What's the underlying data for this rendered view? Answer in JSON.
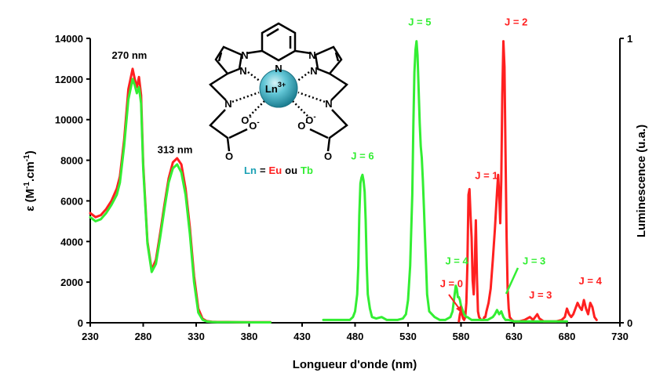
{
  "chart_data": {
    "type": "line",
    "xlabel": "Longueur d'onde (nm)",
    "ylabel_left": {
      "base": "ε (M",
      "sup1": "-1",
      "mid": ".cm",
      "sup2": "-1",
      "end": ")"
    },
    "ylabel_right": "Luminescence (u.a.)",
    "xlim": [
      230,
      730
    ],
    "ylim_left": [
      0,
      14000
    ],
    "ylim_right": [
      0,
      1
    ],
    "x_ticks": [
      "230",
      "280",
      "330",
      "380",
      "430",
      "480",
      "530",
      "580",
      "630",
      "680",
      "730"
    ],
    "y_left_ticks": [
      "0",
      "2000",
      "4000",
      "6000",
      "8000",
      "10000",
      "12000",
      "14000"
    ],
    "y_right_ticks": [
      "0",
      "1"
    ],
    "colors": {
      "eu": "#ff2020",
      "tb": "#33ee33",
      "ln": "#1aa0b4",
      "axis": "#000000"
    },
    "series": [
      {
        "name": "Eu",
        "axis": "left",
        "x": [
          230,
          235,
          240,
          245,
          250,
          255,
          258,
          262,
          266,
          270,
          272,
          274,
          276,
          278,
          280,
          284,
          288,
          292,
          296,
          300,
          304,
          308,
          312,
          316,
          320,
          324,
          328,
          332,
          336,
          340,
          345,
          350,
          360,
          370,
          380,
          390,
          400
        ],
        "y": [
          5400,
          5200,
          5300,
          5600,
          6000,
          6600,
          7200,
          9000,
          11500,
          12500,
          12000,
          11600,
          12100,
          11200,
          7800,
          4000,
          2600,
          3100,
          4400,
          5800,
          7100,
          7900,
          8100,
          7800,
          6600,
          4700,
          2300,
          700,
          200,
          80,
          50,
          40,
          40,
          30,
          30,
          30,
          30
        ]
      },
      {
        "name": "Tb",
        "axis": "left",
        "x": [
          230,
          235,
          240,
          245,
          250,
          255,
          258,
          262,
          266,
          270,
          272,
          274,
          276,
          278,
          280,
          284,
          288,
          292,
          296,
          300,
          304,
          308,
          312,
          316,
          320,
          324,
          328,
          332,
          336,
          340,
          345,
          350,
          360,
          370,
          380,
          390,
          400
        ],
        "y": [
          5200,
          5000,
          5100,
          5400,
          5800,
          6300,
          6900,
          8700,
          11000,
          12000,
          11700,
          11300,
          11600,
          10800,
          7600,
          3900,
          2500,
          2900,
          4200,
          5600,
          6900,
          7600,
          7800,
          7400,
          6300,
          4400,
          2000,
          500,
          150,
          60,
          40,
          30,
          30,
          30,
          20,
          20,
          20
        ]
      },
      {
        "name": "Eu",
        "axis": "right",
        "x": [
          578,
          579,
          580,
          581,
          582,
          583,
          584,
          585,
          586,
          587,
          588,
          589,
          590,
          591,
          592,
          593,
          594,
          595,
          596,
          597,
          598,
          599,
          600,
          601,
          602,
          603,
          604,
          606,
          608,
          610,
          612,
          614,
          615,
          616,
          617,
          618,
          619,
          620,
          621,
          622,
          623,
          624,
          625,
          626,
          628,
          630,
          635,
          640,
          645,
          648,
          650,
          652,
          654,
          656,
          658,
          660,
          665,
          670,
          675,
          678,
          680,
          682,
          684,
          686,
          688,
          690,
          692,
          694,
          696,
          698,
          700,
          702,
          704,
          706,
          708
        ],
        "y": [
          0.005,
          0.03,
          0.045,
          0.03,
          0.015,
          0.01,
          0.02,
          0.07,
          0.2,
          0.45,
          0.47,
          0.38,
          0.3,
          0.15,
          0.1,
          0.2,
          0.36,
          0.16,
          0.04,
          0.02,
          0.015,
          0.01,
          0.01,
          0.01,
          0.02,
          0.02,
          0.04,
          0.07,
          0.12,
          0.22,
          0.33,
          0.46,
          0.52,
          0.45,
          0.35,
          0.5,
          0.8,
          0.99,
          0.9,
          0.6,
          0.3,
          0.12,
          0.05,
          0.02,
          0.01,
          0.005,
          0.005,
          0.01,
          0.02,
          0.01,
          0.02,
          0.03,
          0.015,
          0.01,
          0.005,
          0.005,
          0.005,
          0.005,
          0.01,
          0.02,
          0.05,
          0.03,
          0.02,
          0.03,
          0.05,
          0.07,
          0.055,
          0.045,
          0.08,
          0.05,
          0.03,
          0.07,
          0.055,
          0.02,
          0.01
        ]
      },
      {
        "name": "Tb",
        "axis": "right",
        "x": [
          450,
          460,
          470,
          475,
          478,
          480,
          482,
          483,
          484,
          485,
          486,
          487,
          488,
          489,
          490,
          491,
          492,
          494,
          496,
          500,
          505,
          510,
          515,
          520,
          525,
          528,
          530,
          532,
          534,
          535,
          536,
          537,
          538,
          539,
          540,
          541,
          542,
          543,
          544,
          545,
          546,
          547,
          548,
          550,
          555,
          560,
          565,
          570,
          572,
          574,
          575,
          576,
          577,
          578,
          579,
          580,
          581,
          582,
          583,
          584,
          585,
          586,
          588,
          590,
          595,
          600,
          605,
          610,
          612,
          614,
          616,
          618,
          620,
          622,
          625,
          630,
          640,
          650,
          660,
          670,
          680
        ],
        "y": [
          0.01,
          0.01,
          0.01,
          0.01,
          0.02,
          0.04,
          0.1,
          0.2,
          0.38,
          0.49,
          0.51,
          0.52,
          0.5,
          0.46,
          0.36,
          0.2,
          0.1,
          0.05,
          0.02,
          0.015,
          0.02,
          0.01,
          0.01,
          0.01,
          0.015,
          0.03,
          0.08,
          0.2,
          0.45,
          0.7,
          0.88,
          0.96,
          0.99,
          0.94,
          0.82,
          0.7,
          0.62,
          0.58,
          0.5,
          0.4,
          0.3,
          0.2,
          0.1,
          0.04,
          0.02,
          0.01,
          0.01,
          0.02,
          0.04,
          0.1,
          0.13,
          0.12,
          0.09,
          0.09,
          0.08,
          0.06,
          0.05,
          0.04,
          0.03,
          0.025,
          0.02,
          0.02,
          0.015,
          0.01,
          0.01,
          0.01,
          0.01,
          0.02,
          0.03,
          0.045,
          0.03,
          0.04,
          0.02,
          0.01,
          0.01,
          0.005,
          0.005,
          0.005,
          0.005,
          0.005,
          0.005
        ]
      }
    ],
    "annotations": [
      {
        "text": "270 nm",
        "color": "#000000",
        "x": 267,
        "y": 13000,
        "axis": "left"
      },
      {
        "text": "313 nm",
        "color": "#000000",
        "x": 310,
        "y": 8350,
        "axis": "left"
      },
      {
        "text": "J = 5",
        "color": "#33ee33",
        "x": 541,
        "y": 1.045,
        "axis": "right"
      },
      {
        "text": "J = 2",
        "color": "#ff2020",
        "x": 632,
        "y": 1.045,
        "axis": "right"
      },
      {
        "text": "J = 6",
        "color": "#33ee33",
        "x": 487,
        "y": 0.575,
        "axis": "right"
      },
      {
        "text": "J = 1",
        "color": "#ff2020",
        "x": 604,
        "y": 0.505,
        "axis": "right"
      },
      {
        "text": "J = 4",
        "color": "#33ee33",
        "x": 576,
        "y": 0.205,
        "axis": "right"
      },
      {
        "text": "J = 0",
        "color": "#ff2020",
        "x": 571,
        "y": 0.125,
        "axis": "right"
      },
      {
        "text": "J = 3",
        "color": "#33ee33",
        "x": 649,
        "y": 0.205,
        "axis": "right"
      },
      {
        "text": "J = 3",
        "color": "#ff2020",
        "x": 655,
        "y": 0.085,
        "axis": "right"
      },
      {
        "text": "J = 4",
        "color": "#ff2020",
        "x": 702,
        "y": 0.135,
        "axis": "right"
      }
    ]
  },
  "molecule": {
    "ln_label": "Ln",
    "ln_charge": "3+",
    "atoms": {
      "n": "N",
      "o": "O",
      "minus": "-"
    },
    "legend": {
      "ln": "Ln",
      "eq": "=",
      "eu": "Eu",
      "ou": "ou",
      "tb": "Tb"
    }
  }
}
